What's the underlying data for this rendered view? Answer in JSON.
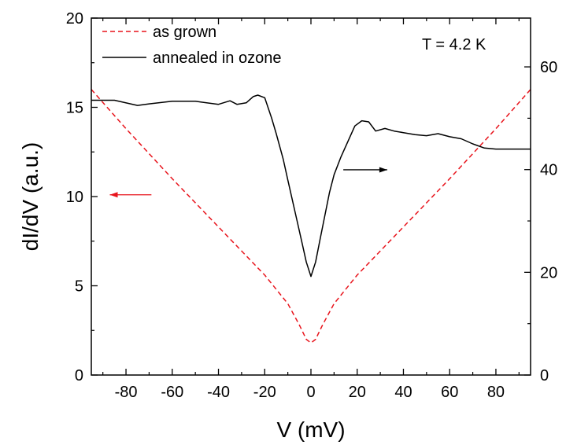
{
  "chart_data": {
    "type": "line",
    "xlabel": "V (mV)",
    "ylabel": "dI/dV (a.u.)",
    "xlim": [
      -95,
      95
    ],
    "ylim": [
      0,
      20
    ],
    "y2lim": [
      0,
      69.5
    ],
    "x_ticks": [
      -80,
      -60,
      -40,
      -20,
      0,
      20,
      40,
      60,
      80
    ],
    "x_tick_labels": [
      "-80",
      "-60",
      "-40",
      "-20",
      "0",
      "20",
      "40",
      "60",
      "80"
    ],
    "y_ticks": [
      0,
      5,
      10,
      15,
      20
    ],
    "y_tick_labels": [
      "0",
      "5",
      "10",
      "15",
      "20"
    ],
    "y2_ticks": [
      0,
      20,
      40,
      60
    ],
    "y2_tick_labels": [
      "0",
      "20",
      "40",
      "60"
    ],
    "annotation": "T = 4.2 K",
    "legend_placement": "top-left",
    "series": [
      {
        "name": "as grown",
        "axis": "left",
        "color": "#e8141c",
        "style": "dashed",
        "x": [
          -95,
          -80,
          -60,
          -40,
          -20,
          -10,
          -5,
          -2,
          0,
          2,
          5,
          10,
          20,
          40,
          60,
          80,
          95
        ],
        "y": [
          16.0,
          13.8,
          11.0,
          8.3,
          5.6,
          4.0,
          2.8,
          2.0,
          1.8,
          2.0,
          2.8,
          4.0,
          5.6,
          8.3,
          11.0,
          13.8,
          16.0
        ]
      },
      {
        "name": "annealed in ozone",
        "axis": "right",
        "color": "#000000",
        "style": "solid",
        "x": [
          -95,
          -85,
          -75,
          -70,
          -60,
          -50,
          -40,
          -35,
          -32,
          -28,
          -25,
          -23,
          -20,
          -17,
          -15,
          -12,
          -10,
          -8,
          -6,
          -4,
          -2,
          0,
          2,
          4,
          6,
          8,
          10,
          13,
          16,
          19,
          22,
          25,
          28,
          32,
          36,
          40,
          45,
          50,
          55,
          60,
          65,
          70,
          75,
          80,
          88,
          95
        ],
        "y": [
          53.5,
          53.5,
          52.5,
          52.8,
          53.3,
          53.3,
          52.7,
          53.4,
          52.7,
          53.0,
          54.2,
          54.5,
          54.0,
          50.0,
          47.0,
          42.0,
          38.0,
          34.0,
          30.0,
          26.0,
          22.0,
          19.2,
          22.0,
          26.5,
          31.0,
          35.5,
          39.0,
          42.5,
          45.5,
          48.5,
          49.5,
          49.3,
          47.5,
          48.0,
          47.5,
          47.2,
          46.8,
          46.6,
          47.0,
          46.4,
          46.0,
          45.0,
          44.2,
          44.0,
          44.0,
          44.0
        ]
      }
    ],
    "arrows": [
      {
        "label_ref": "as grown",
        "direction": "left",
        "color": "#e8141c",
        "x_from": -69,
        "x_to": -87,
        "y": 10.1
      },
      {
        "label_ref": "annealed in ozone",
        "direction": "right",
        "color": "#000000",
        "x_from": 14,
        "x_to": 33,
        "y": 11.5
      }
    ]
  }
}
